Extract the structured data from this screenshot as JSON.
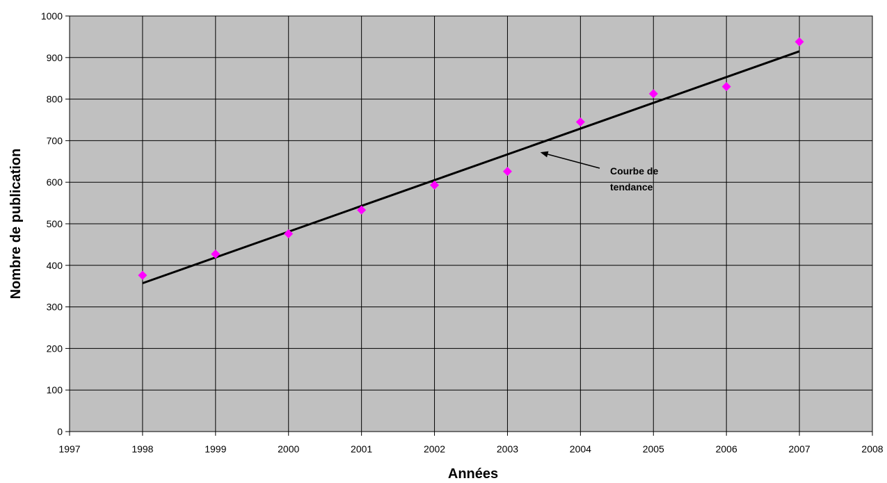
{
  "chart_data": {
    "type": "scatter",
    "xlabel": "Années",
    "ylabel": "Nombre de publication",
    "xlim": [
      1997,
      2008
    ],
    "ylim": [
      0,
      1000
    ],
    "x_ticks": [
      "1997",
      "1998",
      "1999",
      "2000",
      "2001",
      "2002",
      "2003",
      "2004",
      "2005",
      "2006",
      "2007",
      "2008"
    ],
    "y_ticks": [
      "0",
      "100",
      "200",
      "300",
      "400",
      "500",
      "600",
      "700",
      "800",
      "900",
      "1000"
    ],
    "grid": true,
    "plot_background": "#c0c0c0",
    "marker_color": "#ff00ff",
    "marker_shape": "diamond",
    "series": [
      {
        "x": [
          1998,
          1999,
          2000,
          2001,
          2002,
          2003,
          2004,
          2005,
          2006,
          2007
        ],
        "y": [
          376,
          427,
          476,
          533,
          593,
          626,
          745,
          813,
          830,
          938
        ]
      }
    ],
    "trendline": {
      "color": "#000000",
      "x": [
        1998,
        2007
      ],
      "y": [
        357,
        915
      ]
    },
    "annotation": {
      "lines": [
        "Courbe de",
        "tendance"
      ],
      "arrow_target": [
        2003.45,
        672
      ]
    }
  }
}
